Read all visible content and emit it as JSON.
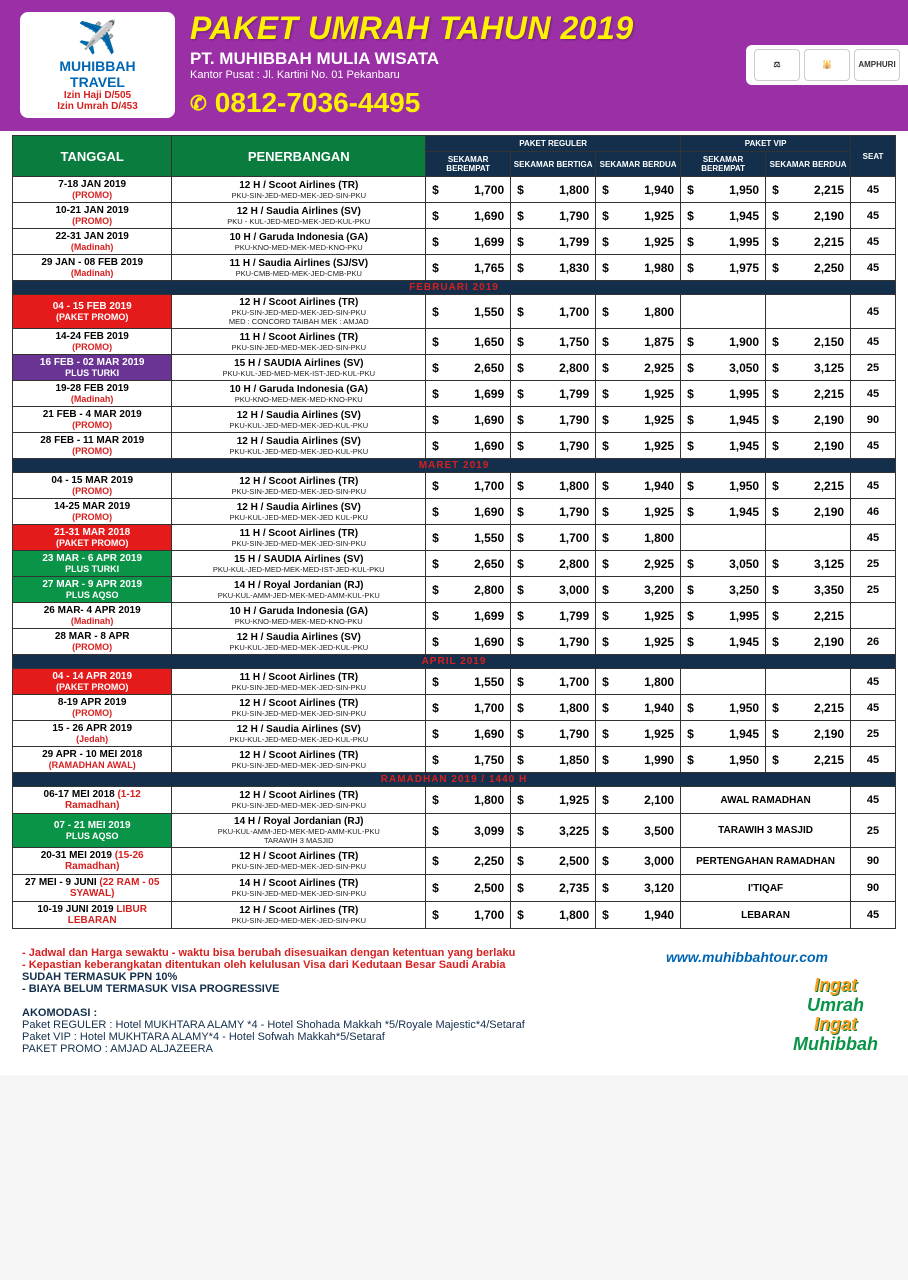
{
  "header": {
    "logo_name": "MUHIBBAH TRAVEL",
    "logo_reg1": "Izin Haji D/505",
    "logo_reg2": "Izin Umrah D/453",
    "title": "PAKET UMRAH TAHUN 2019",
    "company": "PT. MUHIBBAH MULIA WISATA",
    "address": "Kantor Pusat : Jl. Kartini No. 01 Pekanbaru",
    "phone": "0812-7036-4495",
    "badges": [
      "⚖",
      "🕌",
      "AMPHURI"
    ]
  },
  "columns": {
    "tanggal": "TANGGAL",
    "penerbangan": "PENERBANGAN",
    "reguler": "PAKET REGULER",
    "vip": "PAKET VIP",
    "sub": [
      "SEKAMAR BEREMPAT",
      "SEKAMAR BERTIGA",
      "SEKAMAR BERDUA",
      "SEKAMAR BEREMPAT",
      "SEKAMAR BERDUA"
    ],
    "seat": "SEAT"
  },
  "months": [
    "",
    "FEBRUARI 2019",
    "MARET 2019",
    "APRIL 2019",
    "RAMADHAN 2019 / 1440 H"
  ],
  "rows": [
    [
      {
        "date": "7-18 JAN 2019",
        "tag": "(PROMO)",
        "tagClass": "tag-promo",
        "flight": "12 H / Scoot Airlines (TR)",
        "route": "PKU-SIN-JED-MED-MEK-JED-SIN-PKU",
        "p": [
          "1,700",
          "1,800",
          "1,940",
          "1,950",
          "2,215"
        ],
        "seat": "45"
      },
      {
        "date": "10-21 JAN 2019",
        "tag": "(PROMO)",
        "tagClass": "tag-promo",
        "flight": "12 H / Saudia Airlines (SV)",
        "route": "PKU - KUL-JED-MED-MEK-JED-KUL-PKU",
        "p": [
          "1,690",
          "1,790",
          "1,925",
          "1,945",
          "2,190"
        ],
        "seat": "45"
      },
      {
        "date": "22-31 JAN 2019",
        "tag": "(Madinah)",
        "tagClass": "tag-madinah",
        "flight": "10 H / Garuda Indonesia (GA)",
        "route": "PKU-KNO-MED-MEK-MED-KNO-PKU",
        "p": [
          "1,699",
          "1,799",
          "1,925",
          "1,995",
          "2,215"
        ],
        "seat": "45"
      },
      {
        "date": "29 JAN - 08 FEB 2019",
        "tag": "(Madinah)",
        "tagClass": "tag-madinah",
        "flight": "11 H / Saudia Airlines (SJ/SV)",
        "route": "PKU-CMB-MED-MEK-JED-CMB-PKU",
        "p": [
          "1,765",
          "1,830",
          "1,980",
          "1,975",
          "2,250"
        ],
        "seat": "45"
      }
    ],
    [
      {
        "rowClass": "row-red",
        "date": "04 - 15 FEB 2019",
        "tag": "(PAKET PROMO)",
        "tagClass": "tag-promo",
        "flight": "12 H / Scoot Airlines (TR)",
        "route": "PKU-SIN-JED-MED-MEK-JED-SIN-PKU",
        "route2": "MED : CONCORD TAIBAH MEK : AMJAD",
        "p": [
          "1,550",
          "1,700",
          "1,800",
          "",
          ""
        ],
        "seat": "45"
      },
      {
        "date": "14-24 FEB 2019",
        "tag": "(PROMO)",
        "tagClass": "tag-promo",
        "flight": "11 H / Scoot Airlines (TR)",
        "route": "PKU-SIN-JED-MED-MEK-JED-SIN-PKU",
        "p": [
          "1,650",
          "1,750",
          "1,875",
          "1,900",
          "2,150"
        ],
        "seat": "45"
      },
      {
        "rowClass": "row-purple",
        "date": "16 FEB - 02 MAR  2019",
        "tag": "PLUS TURKI",
        "tagClass": "",
        "flight": "15 H / SAUDIA Airlines (SV)",
        "route": "PKU-KUL-JED-MED-MEK-IST-JED-KUL-PKU",
        "p": [
          "2,650",
          "2,800",
          "2,925",
          "3,050",
          "3,125"
        ],
        "seat": "25"
      },
      {
        "date": "19-28 FEB 2019",
        "tag": "(Madinah)",
        "tagClass": "tag-madinah",
        "flight": "10 H / Garuda Indonesia (GA)",
        "route": "PKU-KNO-MED-MEK-MED-KNO-PKU",
        "p": [
          "1,699",
          "1,799",
          "1,925",
          "1,995",
          "2,215"
        ],
        "seat": "45"
      },
      {
        "date": "21 FEB - 4 MAR 2019",
        "tag": "(PROMO)",
        "tagClass": "tag-promo",
        "flight": "12 H / Saudia Airlines (SV)",
        "route": "PKU-KUL-JED-MED-MEK-JED-KUL-PKU",
        "p": [
          "1,690",
          "1,790",
          "1,925",
          "1,945",
          "2,190"
        ],
        "seat": "90"
      },
      {
        "date": "28 FEB - 11 MAR 2019",
        "tag": "(PROMO)",
        "tagClass": "tag-promo",
        "flight": "12 H / Saudia Airlines (SV)",
        "route": "PKU-KUL-JED-MED-MEK-JED-KUL-PKU",
        "p": [
          "1,690",
          "1,790",
          "1,925",
          "1,945",
          "2,190"
        ],
        "seat": "45"
      }
    ],
    [
      {
        "date": "04 - 15 MAR 2019",
        "tag": "(PROMO)",
        "tagClass": "tag-promo",
        "flight": "12 H / Scoot Airlines (TR)",
        "route": "PKU-SIN-JED-MED-MEK-JED-SIN-PKU",
        "p": [
          "1,700",
          "1,800",
          "1,940",
          "1,950",
          "2,215"
        ],
        "seat": "45"
      },
      {
        "date": "14-25 MAR 2019",
        "tag": "(PROMO)",
        "tagClass": "tag-promo",
        "flight": "12 H / Saudia Airlines (SV)",
        "route": "PKU-KUL-JED-MED-MEK-JED KUL-PKU",
        "p": [
          "1,690",
          "1,790",
          "1,925",
          "1,945",
          "2,190"
        ],
        "seat": "46"
      },
      {
        "rowClass": "row-red",
        "date": "21-31 MAR  2018",
        "tag": "(PAKET PROMO)",
        "tagClass": "tag-promo",
        "flight": "11 H / Scoot Airlines (TR)",
        "route": "PKU-SIN-JED-MED-MEK-JED-SIN-PKU",
        "p": [
          "1,550",
          "1,700",
          "1,800",
          "",
          ""
        ],
        "seat": "45"
      },
      {
        "rowClass": "row-green",
        "date": "23 MAR  - 6 APR 2019",
        "tag": "PLUS TURKI",
        "tagClass": "",
        "flight": "15 H / SAUDIA Airlines (SV)",
        "route": "PKU-KUL-JED-MED-MEK-MED-IST-JED-KUL-PKU",
        "p": [
          "2,650",
          "2,800",
          "2,925",
          "3,050",
          "3,125"
        ],
        "seat": "25"
      },
      {
        "rowClass": "row-green",
        "date": "27 MAR - 9 APR 2019",
        "tag": "PLUS AQSO",
        "tagClass": "",
        "flight": "14 H / Royal Jordanian  (RJ)",
        "route": "PKU-KUL-AMM-JED-MEK-MED-AMM-KUL-PKU",
        "p": [
          "2,800",
          "3,000",
          "3,200",
          "3,250",
          "3,350"
        ],
        "seat": "25"
      },
      {
        "date": "26 MAR- 4 APR 2019",
        "tag": "(Madinah)",
        "tagClass": "tag-madinah",
        "flight": "10 H / Garuda Indonesia (GA)",
        "route": "PKU-KNO-MED-MEK-MED-KNO-PKU",
        "p": [
          "1,699",
          "1,799",
          "1,925",
          "1,995",
          "2,215"
        ],
        "seat": ""
      },
      {
        "date": "28 MAR  - 8 APR",
        "tag": "(PROMO)",
        "tagClass": "tag-promo",
        "flight": "12 H / Saudia Airlines (SV)",
        "route": "PKU-KUL-JED-MED-MEK-JED-KUL-PKU",
        "p": [
          "1,690",
          "1,790",
          "1,925",
          "1,945",
          "2,190"
        ],
        "seat": "26"
      }
    ],
    [
      {
        "rowClass": "row-red",
        "date": "04 - 14 APR 2019",
        "tag": "(PAKET PROMO)",
        "tagClass": "tag-promo",
        "flight": "11 H / Scoot Airlines (TR)",
        "route": "PKU-SIN-JED-MED-MEK-JED-SIN-PKU",
        "p": [
          "1,550",
          "1,700",
          "1,800",
          "",
          ""
        ],
        "seat": "45"
      },
      {
        "date": "8-19 APR 2019",
        "tag": "(PROMO)",
        "tagClass": "tag-promo",
        "flight": "12 H / Scoot Airlines (TR)",
        "route": "PKU-SIN-JED-MED-MEK-JED-SIN-PKU",
        "p": [
          "1,700",
          "1,800",
          "1,940",
          "1,950",
          "2,215"
        ],
        "seat": "45"
      },
      {
        "date": "15 - 26 APR 2019",
        "tag": "(Jedah)",
        "tagClass": "tag-jedah",
        "flight": "12 H / Saudia Airlines (SV)",
        "route": "PKU-KUL-JED-MED-MEK-JED-KUL-PKU",
        "p": [
          "1,690",
          "1,790",
          "1,925",
          "1,945",
          "2,190"
        ],
        "seat": "25"
      },
      {
        "date": "29 APR - 10 MEI 2018",
        "tag": "(RAMADHAN AWAL)",
        "tagClass": "tag-ramadhan",
        "flight": "12 H / Scoot Airlines (TR)",
        "route": "PKU-SIN-JED-MED-MEK-JED-SIN-PKU",
        "p": [
          "1,750",
          "1,850",
          "1,990",
          "1,950",
          "2,215"
        ],
        "seat": "45"
      }
    ],
    [
      {
        "date": "06-17 MEI 2018",
        "dateExtra": "(1-12 Ramadhan)",
        "flight": "12 H / Scoot Airlines (TR)",
        "route": "PKU-SIN-JED-MED-MEK-JED-SIN-PKU",
        "p": [
          "1,800",
          "1,925",
          "2,100"
        ],
        "vipNote": "AWAL RAMADHAN",
        "seat": "45"
      },
      {
        "rowClass": "row-green",
        "date": "07 - 21 MEI 2019",
        "tag": "PLUS AQSO",
        "tagClass": "",
        "flight": "14 H / Royal Jordanian  (RJ)",
        "route": "PKU-KUL-AMM-JED-MEK-MED-AMM-KUL-PKU",
        "route2": "TARAWIH 3 MASJID",
        "p": [
          "3,099",
          "3,225",
          "3,500"
        ],
        "vipNote": "TARAWIH 3 MASJID",
        "seat": "25"
      },
      {
        "date": "20-31 MEI  2019",
        "dateExtra": "(15-26 Ramadhan)",
        "flight": "12 H / Scoot Airlines (TR)",
        "route": "PKU-SIN-JED-MED-MEK-JED-SIN-PKU",
        "p": [
          "2,250",
          "2,500",
          "3,000"
        ],
        "vipNote": "PERTENGAHAN RAMADHAN",
        "seat": "90"
      },
      {
        "date": "27 MEI - 9 JUNI",
        "dateExtra": "(22 RAM - 05 SYAWAL)",
        "flight": "14 H / Scoot Airlines (TR)",
        "route": "PKU-SIN-JED-MED-MEK-JED-SIN-PKU",
        "p": [
          "2,500",
          "2,735",
          "3,120"
        ],
        "vipNote": "I'TIQAF",
        "seat": "90"
      },
      {
        "date": "10-19 JUNI 2019",
        "dateExtra": "LIBUR LEBARAN",
        "dateExtraClass": "tag-ramadhan",
        "flight": "12 H / Scoot Airlines (TR)",
        "route": "PKU-SIN-JED-MED-MEK-JED-SIN-PKU",
        "p": [
          "1,700",
          "1,800",
          "1,940"
        ],
        "vipNote": "LEBARAN",
        "seat": "45"
      }
    ]
  ],
  "notes": {
    "l1": "- Jadwal dan Harga sewaktu - waktu bisa berubah disesuaikan dengan ketentuan yang berlaku",
    "l2": "- Kepastian keberangkatan ditentukan oleh kelulusan Visa dari Kedutaan Besar Saudi Arabia",
    "l3": "  SUDAH TERMASUK PPN 10%",
    "l4": "- BIAYA BELUM TERMASUK VISA PROGRESSIVE",
    "website": "www.muhibbahtour.com"
  },
  "akomodasi": {
    "title": "AKOMODASI :",
    "reg": "Paket REGULER : Hotel MUKHTARA ALAMY *4 - Hotel Shohada Makkah *5/Royale Majestic*4/Setaraf",
    "vip": "Paket VIP        : Hotel MUKHTARA ALAMY*4  - Hotel Sofwah Makkah*5/Setaraf",
    "promo": "PAKET PROMO : AMJAD ALJAZEERA"
  },
  "footer": {
    "l1": "Ingat",
    "l2": "Umrah",
    "l3": "Ingat",
    "l4": "Muhibbah"
  }
}
